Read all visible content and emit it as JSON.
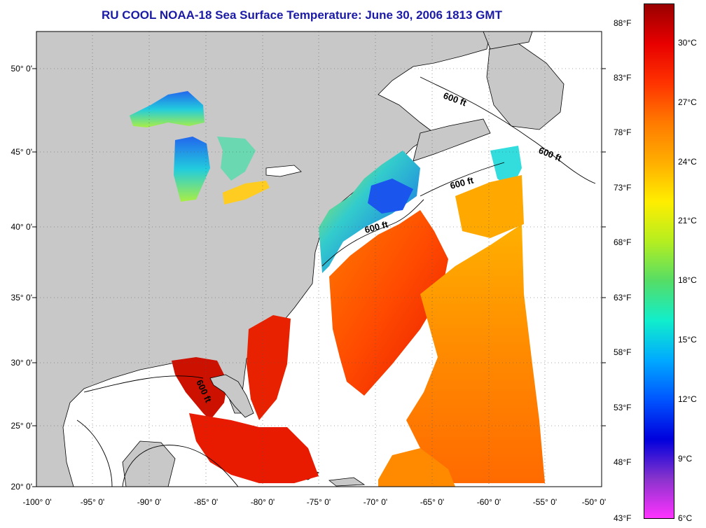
{
  "title": "RU COOL  NOAA-18  Sea Surface Temperature:  June 30, 2006 1813 GMT",
  "map": {
    "lat_labels": [
      "50° 0'",
      "45° 0'",
      "40° 0'",
      "35° 0'",
      "30° 0'",
      "25° 0'",
      "20° 0'"
    ],
    "lon_labels": [
      "-100° 0'",
      "-95° 0'",
      "-90° 0'",
      "-85° 0'",
      "-80° 0'",
      "-75° 0'",
      "-70° 0'",
      "-65° 0'",
      "-60° 0'",
      "-55° 0'",
      "-50° 0'"
    ],
    "isobath_labels": [
      "600 ft",
      "600 ft",
      "600 ft",
      "600 ft",
      "600 ft"
    ],
    "colors": {
      "land": "#c8c8c8",
      "no_data": "#ffffff",
      "title": "#1a1aa6"
    }
  },
  "colorbar": {
    "fahrenheit_labels": [
      "88°F",
      "83°F",
      "78°F",
      "73°F",
      "68°F",
      "63°F",
      "58°F",
      "53°F",
      "48°F",
      "43°F"
    ],
    "celsius_labels": [
      "30°C",
      "27°C",
      "24°C",
      "21°C",
      "18°C",
      "15°C",
      "12°C",
      "9°C",
      "6°C"
    ],
    "colors": [
      "#990000",
      "#e80000",
      "#ff3300",
      "#ff7a00",
      "#ffae00",
      "#ffee00",
      "#b5ee20",
      "#55dd66",
      "#11eecc",
      "#00aaff",
      "#0055ff",
      "#0000dd",
      "#8833cc",
      "#ff33ff"
    ]
  }
}
